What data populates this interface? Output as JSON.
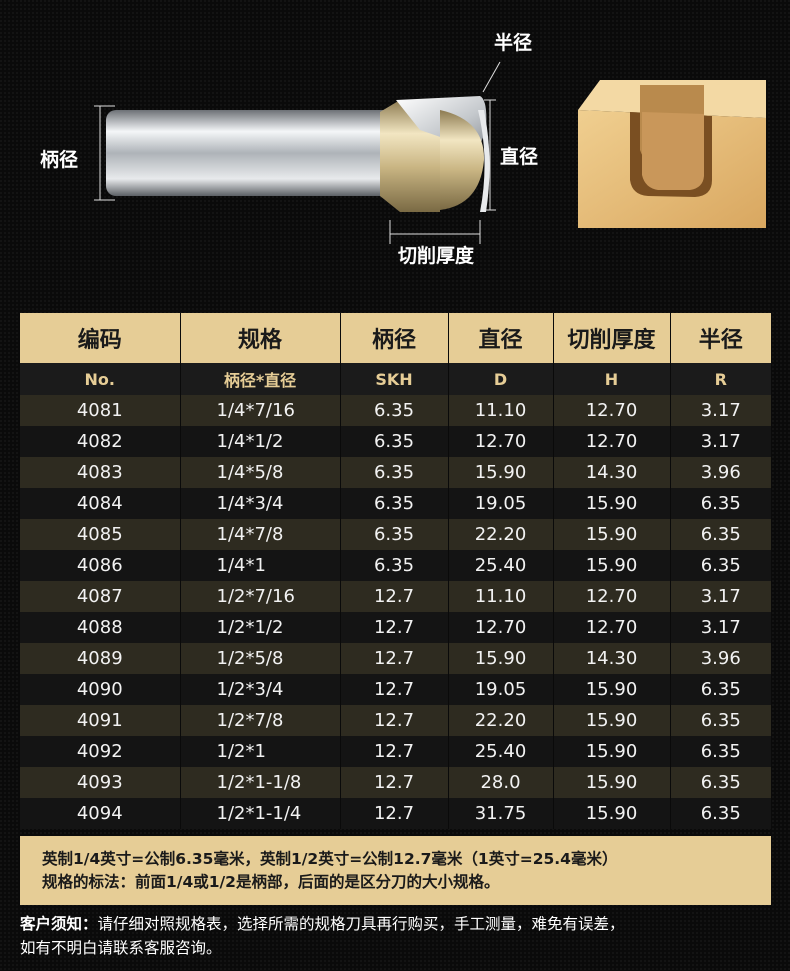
{
  "diagram_labels": {
    "shank": "柄径",
    "radius": "半径",
    "diameter": "直径",
    "cut_height": "切削厚度"
  },
  "table": {
    "headers": [
      "编码",
      "规格",
      "柄径",
      "直径",
      "切削厚度",
      "半径"
    ],
    "subheaders": [
      "No.",
      "柄径*直径",
      "SKH",
      "D",
      "H",
      "R"
    ],
    "rows": [
      [
        "4081",
        "1/4*7/16",
        "6.35",
        "11.10",
        "12.70",
        "3.17"
      ],
      [
        "4082",
        "1/4*1/2",
        "6.35",
        "12.70",
        "12.70",
        "3.17"
      ],
      [
        "4083",
        "1/4*5/8",
        "6.35",
        "15.90",
        "14.30",
        "3.96"
      ],
      [
        "4084",
        "1/4*3/4",
        "6.35",
        "19.05",
        "15.90",
        "6.35"
      ],
      [
        "4085",
        "1/4*7/8",
        "6.35",
        "22.20",
        "15.90",
        "6.35"
      ],
      [
        "4086",
        "1/4*1",
        "6.35",
        "25.40",
        "15.90",
        "6.35"
      ],
      [
        "4087",
        "1/2*7/16",
        "12.7",
        "11.10",
        "12.70",
        "3.17"
      ],
      [
        "4088",
        "1/2*1/2",
        "12.7",
        "12.70",
        "12.70",
        "3.17"
      ],
      [
        "4089",
        "1/2*5/8",
        "12.7",
        "15.90",
        "14.30",
        "3.96"
      ],
      [
        "4090",
        "1/2*3/4",
        "12.7",
        "19.05",
        "15.90",
        "6.35"
      ],
      [
        "4091",
        "1/2*7/8",
        "12.7",
        "22.20",
        "15.90",
        "6.35"
      ],
      [
        "4092",
        "1/2*1",
        "12.7",
        "25.40",
        "15.90",
        "6.35"
      ],
      [
        "4093",
        "1/2*1-1/8",
        "12.7",
        "28.0",
        "15.90",
        "6.35"
      ],
      [
        "4094",
        "1/2*1-1/4",
        "12.7",
        "31.75",
        "15.90",
        "6.35"
      ]
    ]
  },
  "note": {
    "line1": "英制1/4英寸=公制6.35毫米，英制1/2英寸=公制12.7毫米（1英寸=25.4毫米）",
    "line2": "规格的标法：前面1/4或1/2是柄部，后面的是区分刀的大小规格。"
  },
  "notice": {
    "title": "客户须知：",
    "line1": "请仔细对照规格表，选择所需的规格刀具再行购买，手工测量，难免有误差，",
    "line2": "如有不明白请联系客服咨询。"
  },
  "colors": {
    "gold": "#e6cd96",
    "row_odd": "#2e2b20",
    "row_even": "#141414"
  }
}
